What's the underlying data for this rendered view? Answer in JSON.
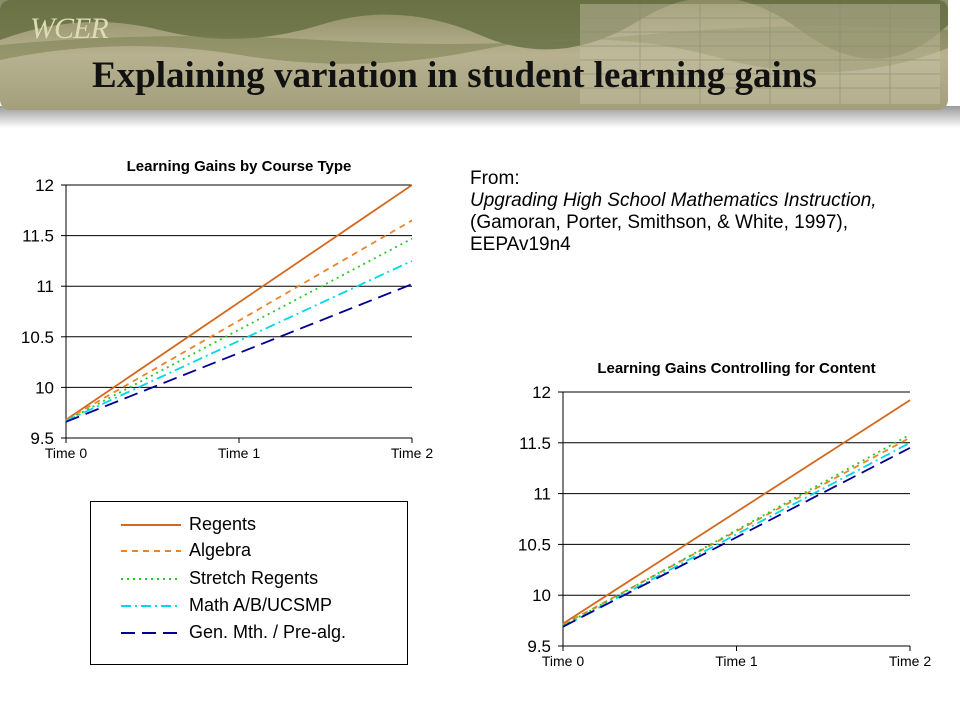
{
  "header": {
    "logo_text": "WCER",
    "title": "Explaining variation in student learning gains",
    "colors": {
      "bar": "#b3ad8a",
      "bar_dark": "#7b8053",
      "hills": "#5c6b3a"
    }
  },
  "citation": {
    "line1": "From:",
    "line2": "Upgrading High School Mathematics Instruction,",
    "line3": "(Gamoran, Porter, Smithson, & White, 1997),",
    "line4": "EEPAv19n4"
  },
  "legend": {
    "items": [
      {
        "label": "Regents",
        "color": "#d2691e",
        "dash": ""
      },
      {
        "label": "Algebra",
        "color": "#e8842a",
        "dash": "6,5"
      },
      {
        "label": "Stretch Regents",
        "color": "#22cc22",
        "dash": "2,4"
      },
      {
        "label": "Math A/B/UCSMP",
        "color": "#00d8e8",
        "dash": "10,4,2,4"
      },
      {
        "label": "Gen. Mth. / Pre-alg.",
        "color": "#000090",
        "dash": "14,7"
      }
    ]
  },
  "chart_data": [
    {
      "type": "line",
      "title": "Learning Gains by Course Type",
      "xlabel": "",
      "ylabel": "",
      "x": [
        "Time 0",
        "Time 1",
        "Time 2"
      ],
      "ylim": [
        9.5,
        12
      ],
      "yticks": [
        "9.5",
        "10",
        "10.5",
        "11",
        "11.5",
        "12"
      ],
      "grid": "horizontal",
      "series": [
        {
          "name": "Regents",
          "values": [
            9.68,
            10.84,
            12.0
          ]
        },
        {
          "name": "Algebra",
          "values": [
            9.68,
            10.66,
            11.65
          ]
        },
        {
          "name": "Stretch Regents",
          "values": [
            9.67,
            10.57,
            11.47
          ]
        },
        {
          "name": "Math A/B/UCSMP",
          "values": [
            9.67,
            10.46,
            11.25
          ]
        },
        {
          "name": "Gen. Mth. / Pre-alg.",
          "values": [
            9.66,
            10.34,
            11.02
          ]
        }
      ]
    },
    {
      "type": "line",
      "title": "Learning Gains Controlling for Content",
      "xlabel": "",
      "ylabel": "",
      "x": [
        "Time 0",
        "Time 1",
        "Time 2"
      ],
      "ylim": [
        9.5,
        12
      ],
      "yticks": [
        "9.5",
        "10",
        "10.5",
        "11",
        "11.5",
        "12"
      ],
      "grid": "horizontal",
      "series": [
        {
          "name": "Regents",
          "values": [
            9.72,
            10.82,
            11.92
          ]
        },
        {
          "name": "Algebra",
          "values": [
            9.71,
            10.63,
            11.55
          ]
        },
        {
          "name": "Stretch Regents",
          "values": [
            9.7,
            10.64,
            11.58
          ]
        },
        {
          "name": "Math A/B/UCSMP",
          "values": [
            9.69,
            10.6,
            11.5
          ]
        },
        {
          "name": "Gen. Mth. / Pre-alg.",
          "values": [
            9.69,
            10.57,
            11.45
          ]
        }
      ]
    }
  ]
}
